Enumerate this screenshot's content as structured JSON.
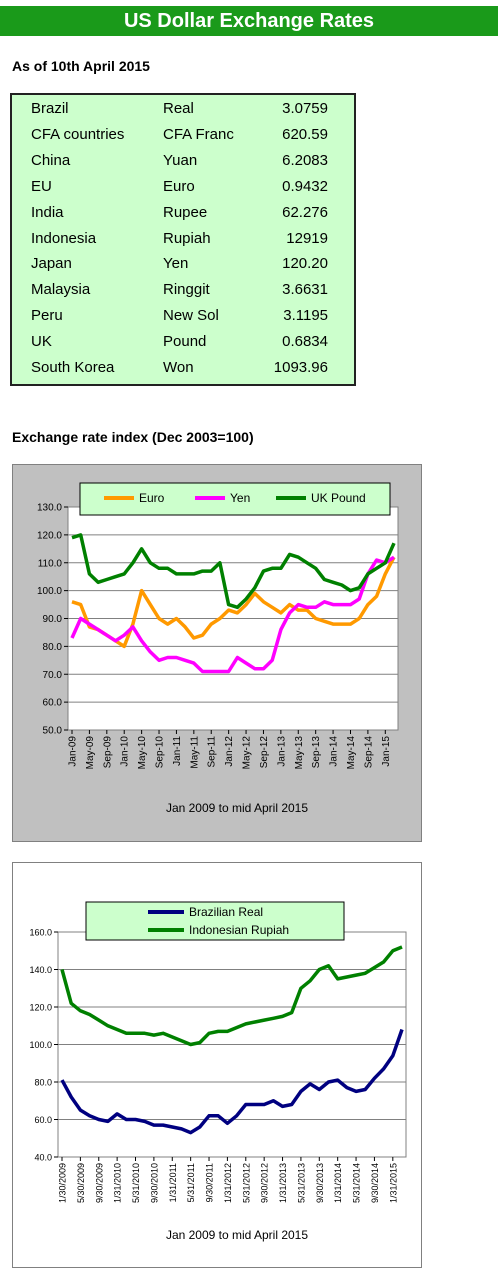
{
  "header": {
    "title": "US Dollar Exchange Rates"
  },
  "as_of": "As of 10th April 2015",
  "table": {
    "rows": [
      [
        "Brazil",
        "Real",
        "3.0759"
      ],
      [
        "CFA countries",
        "CFA Franc",
        "620.59"
      ],
      [
        "China",
        "Yuan",
        "6.2083"
      ],
      [
        "EU",
        "Euro",
        "0.9432"
      ],
      [
        "India",
        "Rupee",
        "62.276"
      ],
      [
        "Indonesia",
        "Rupiah",
        "12919"
      ],
      [
        "Japan",
        "Yen",
        "120.20"
      ],
      [
        "Malaysia",
        "Ringgit",
        "3.6631"
      ],
      [
        "Peru",
        "New Sol",
        "3.1195"
      ],
      [
        "UK",
        "Pound",
        "0.6834"
      ],
      [
        "South Korea",
        "Won",
        "1093.96"
      ]
    ]
  },
  "section_title": "Exchange rate index (Dec 2003=100)",
  "chart_data": [
    {
      "type": "line",
      "xlabel": "Jan 2009 to mid April 2015",
      "legend": "top",
      "grid": true,
      "categories": [
        "Jan-09",
        null,
        "May-09",
        null,
        "Sep-09",
        null,
        "Jan-10",
        null,
        "May-10",
        null,
        "Sep-10",
        null,
        "Jan-11",
        null,
        "May-11",
        null,
        "Sep-11",
        null,
        "Jan-12",
        null,
        "May-12",
        null,
        "Sep-12",
        null,
        "Jan-13",
        null,
        "May-13",
        null,
        "Sep-13",
        null,
        "Jan-14",
        null,
        "May-14",
        null,
        "Sep-14",
        null,
        "Jan-15",
        null
      ],
      "ylim": [
        50,
        130
      ],
      "yticks": [
        {
          "value": 50,
          "label": "50.0"
        },
        {
          "value": 60,
          "label": "60.0"
        },
        {
          "value": 70,
          "label": "70.0"
        },
        {
          "value": 80,
          "label": "80.0"
        },
        {
          "value": 90,
          "label": "90.0"
        },
        {
          "value": 100,
          "label": "100.0"
        },
        {
          "value": 110,
          "label": "110.0"
        },
        {
          "value": 120,
          "label": "120.0"
        },
        {
          "value": 130,
          "label": "130.0"
        }
      ],
      "series": [
        {
          "name": "Euro",
          "color": "#ff9900",
          "values": [
            96,
            95,
            87,
            86,
            84,
            82,
            80,
            88,
            100,
            95,
            90,
            88,
            90,
            87,
            83,
            84,
            88,
            90,
            93,
            92,
            95,
            99,
            96,
            94,
            92,
            95,
            93,
            93,
            90,
            89,
            88,
            88,
            88,
            90,
            95,
            98,
            106,
            112
          ]
        },
        {
          "name": "Yen",
          "color": "#ff00ff",
          "values": [
            83,
            90,
            88,
            86,
            84,
            82,
            84,
            87,
            82,
            78,
            75,
            76,
            76,
            75,
            74,
            71,
            71,
            71,
            71,
            76,
            74,
            72,
            72,
            75,
            86,
            92,
            95,
            94,
            94,
            96,
            95,
            95,
            95,
            97,
            106,
            111,
            110,
            112
          ]
        },
        {
          "name": "UK Pound",
          "color": "#008000",
          "values": [
            119,
            120,
            106,
            103,
            104,
            105,
            106,
            110,
            115,
            110,
            108,
            108,
            106,
            106,
            106,
            107,
            107,
            110,
            95,
            94,
            97,
            101,
            107,
            108,
            108,
            113,
            112,
            110,
            108,
            104,
            103,
            102,
            100,
            101,
            106,
            108,
            110,
            117
          ]
        }
      ]
    },
    {
      "type": "line",
      "xlabel": "Jan 2009 to  mid April 2015",
      "legend": "top",
      "grid": true,
      "categories": [
        "1/30/2009",
        null,
        "5/30/2009",
        null,
        "9/30/2009",
        null,
        "1/31/2010",
        null,
        "5/31/2010",
        null,
        "9/30/2010",
        null,
        "1/31/2011",
        null,
        "5/31/2011",
        null,
        "9/30/2011",
        null,
        "1/31/2012",
        null,
        "5/31/2012",
        null,
        "9/30/2012",
        null,
        "1/31/2013",
        null,
        "5/31/2013",
        null,
        "9/30/2013",
        null,
        "1/31/2014",
        null,
        "5/31/2014",
        null,
        "9/30/2014",
        null,
        "1/31/2015",
        null
      ],
      "ylim": [
        40,
        160
      ],
      "yticks": [
        {
          "value": 40,
          "label": "40.0"
        },
        {
          "value": 60,
          "label": "60.0"
        },
        {
          "value": 80,
          "label": "80.0"
        },
        {
          "value": 100,
          "label": "100.0"
        },
        {
          "value": 120,
          "label": "120.0"
        },
        {
          "value": 140,
          "label": "140.0"
        },
        {
          "value": 160,
          "label": "160.0"
        }
      ],
      "series": [
        {
          "name": "Brazilian Real",
          "color": "#000080",
          "values": [
            81,
            72,
            65,
            62,
            60,
            59,
            63,
            60,
            60,
            59,
            57,
            57,
            56,
            55,
            53,
            56,
            62,
            62,
            58,
            62,
            68,
            68,
            68,
            70,
            67,
            68,
            75,
            79,
            76,
            80,
            81,
            77,
            75,
            76,
            82,
            87,
            94,
            108
          ]
        },
        {
          "name": "Indonesian Rupiah",
          "color": "#008000",
          "values": [
            140,
            122,
            118,
            116,
            113,
            110,
            108,
            106,
            106,
            106,
            105,
            106,
            104,
            102,
            100,
            101,
            106,
            107,
            107,
            109,
            111,
            112,
            113,
            114,
            115,
            117,
            130,
            134,
            140,
            142,
            135,
            136,
            137,
            138,
            141,
            144,
            150,
            152
          ]
        }
      ]
    }
  ]
}
